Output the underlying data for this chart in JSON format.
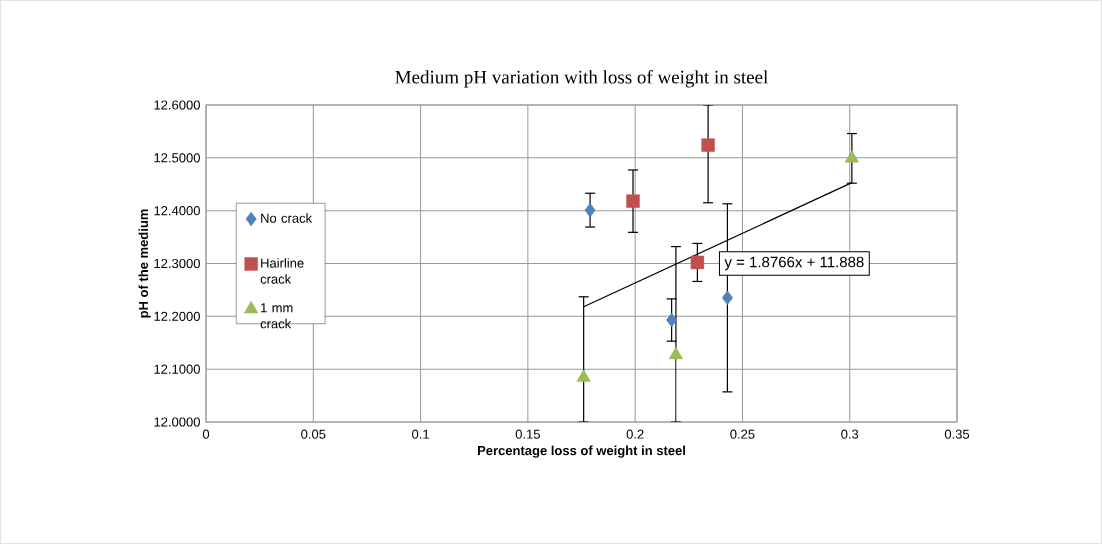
{
  "chart_data": {
    "type": "scatter",
    "title": "Medium pH variation  with loss of weight  in steel",
    "xlabel": "Percentage loss of weight in steel",
    "ylabel": "pH of the medium",
    "xlim": [
      0,
      0.35
    ],
    "xticks": [
      0,
      0.05,
      0.1,
      0.15,
      0.2,
      0.25,
      0.3,
      0.35
    ],
    "ylim": [
      12.0,
      12.6
    ],
    "yticks": [
      {
        "value": 12.0,
        "label": "12.0000"
      },
      {
        "value": 12.1,
        "label": "12.1000"
      },
      {
        "value": 12.2,
        "label": "12.2000"
      },
      {
        "value": 12.3,
        "label": "12.3000"
      },
      {
        "value": 12.4,
        "label": "12.4000"
      },
      {
        "value": 12.5,
        "label": "12.5000"
      },
      {
        "value": 12.6,
        "label": "12.6000"
      }
    ],
    "grid": true,
    "legend": "left",
    "series": [
      {
        "name": "No crack",
        "color": "#4f81bd",
        "marker": "diamond",
        "x": [
          0.179,
          0.217,
          0.243
        ],
        "values": [
          12.401,
          12.193,
          12.235
        ],
        "errors": [
          0.032,
          0.04,
          0.178
        ]
      },
      {
        "name": "Hairline crack",
        "color": "#c0504d",
        "marker": "square",
        "x": [
          0.199,
          0.234,
          0.229
        ],
        "values": [
          12.418,
          12.524,
          12.302
        ],
        "errors": [
          0.059,
          [
            12.415,
            12.6
          ],
          0.036
        ]
      },
      {
        "name": "1 mm crack",
        "color": "#9bbb59",
        "marker": "triangle",
        "x": [
          0.176,
          0.219,
          0.301
        ],
        "values": [
          12.084,
          12.127,
          12.499
        ],
        "errors": [
          [
            12.0,
            12.237
          ],
          [
            12.0,
            12.332
          ],
          0.047
        ]
      },
      {
        "type": "line",
        "color": "#000000",
        "x": [
          0.176,
          0.301
        ],
        "values": [
          12.218,
          12.453
        ]
      }
    ],
    "annotations": [
      "y = 1.8766x + 11.888"
    ]
  }
}
